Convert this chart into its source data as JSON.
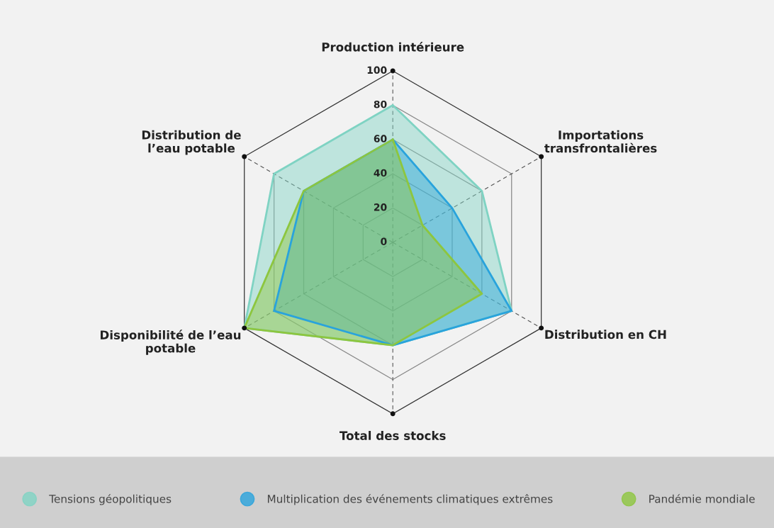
{
  "chart_data": {
    "type": "radar",
    "categories": [
      "Production intérieure",
      "Importations\ntransfrontalières",
      "Distribution en CH",
      "Total des stocks",
      "Disponibilité de l’eau\npotable",
      "Distribution de\nl’eau potable"
    ],
    "series": [
      {
        "name": "Tensions géopolitiques",
        "color": "#7fd3c3",
        "values": [
          80,
          60,
          80,
          60,
          100,
          80
        ]
      },
      {
        "name": "Multiplication des événements climatiques extrêmes",
        "color": "#29a3dc",
        "values": [
          60,
          40,
          80,
          60,
          80,
          60
        ]
      },
      {
        "name": "Pandémie mondiale",
        "color": "#8dc63f",
        "values": [
          60,
          20,
          60,
          60,
          100,
          60
        ]
      }
    ],
    "ylim": [
      0,
      100
    ],
    "yticks": [
      0,
      20,
      40,
      60,
      80,
      100
    ],
    "grid": true,
    "legend": "bottom"
  }
}
